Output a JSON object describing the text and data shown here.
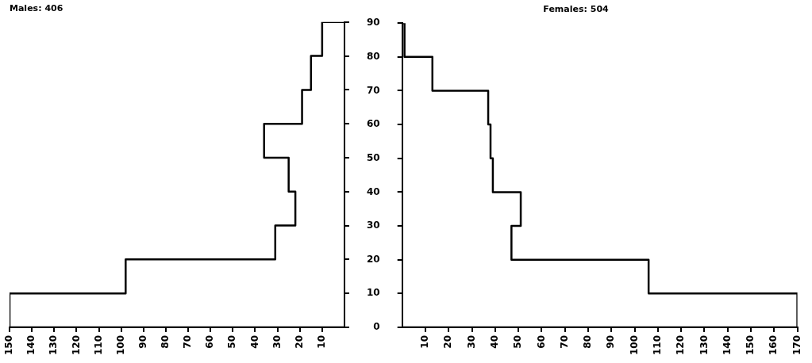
{
  "chart_data": [
    {
      "type": "line",
      "title": "Males: 406",
      "series": [
        {
          "color": "#000000",
          "x": [
            0,
            150,
            150,
            98,
            98,
            31,
            31,
            22,
            22,
            25,
            25,
            36,
            36,
            19,
            19,
            15,
            15,
            10,
            10,
            0
          ],
          "values": [
            0,
            0,
            10,
            10,
            20,
            20,
            30,
            30,
            40,
            40,
            50,
            50,
            60,
            60,
            70,
            70,
            80,
            80,
            90,
            90
          ]
        }
      ],
      "xlim": [
        150,
        0
      ],
      "xticks": [
        150,
        140,
        130,
        120,
        110,
        100,
        90,
        80,
        70,
        60,
        50,
        40,
        30,
        20,
        10
      ],
      "ylim": [
        0,
        90
      ],
      "yticks": [
        0,
        10,
        20,
        30,
        40,
        50,
        60,
        70,
        80,
        90
      ],
      "tick_labels": "x",
      "marker": "none",
      "line_style": "solid"
    },
    {
      "type": "line",
      "title": "Females: 504",
      "series": [
        {
          "color": "#000000",
          "x": [
            0,
            170,
            170,
            106,
            106,
            47,
            47,
            51,
            51,
            39,
            39,
            38,
            38,
            37,
            37,
            13,
            13,
            1,
            1,
            0
          ],
          "values": [
            0,
            0,
            10,
            10,
            20,
            20,
            30,
            30,
            40,
            40,
            50,
            50,
            60,
            60,
            70,
            70,
            80,
            80,
            90,
            90
          ]
        }
      ],
      "xlim": [
        0,
        170
      ],
      "xticks": [
        10,
        20,
        30,
        40,
        50,
        60,
        70,
        80,
        90,
        100,
        110,
        120,
        130,
        140,
        150,
        160,
        170
      ],
      "ylim": [
        0,
        90
      ],
      "yticks": [
        0,
        10,
        20,
        30,
        40,
        50,
        60,
        70,
        80,
        90
      ],
      "marker": "none",
      "line_style": "solid"
    }
  ]
}
